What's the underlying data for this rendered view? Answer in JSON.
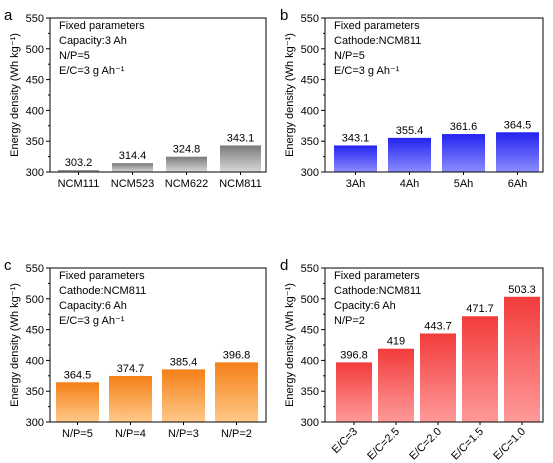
{
  "chart_data": [
    {
      "type": "bar",
      "panel_letter": "a",
      "categories": [
        "NCM111",
        "NCM523",
        "NCM622",
        "NCM811"
      ],
      "values": [
        303.2,
        314.4,
        324.8,
        343.1
      ],
      "value_labels": [
        "303.2",
        "314.4",
        "324.8",
        "343.1"
      ],
      "ylabel": "Energy density (Wh kg⁻¹)",
      "ylim": [
        300,
        550
      ],
      "yticks": [
        "300",
        "350",
        "400",
        "450",
        "500",
        "550"
      ],
      "notes": [
        "Fixed parameters",
        "Capacity:3 Ah",
        "N/P=5",
        "E/C=3 g Ah⁻¹"
      ],
      "color_top": "#7a7a7a",
      "color_bottom": "#d9d9d9",
      "x_tick_rotation": 0
    },
    {
      "type": "bar",
      "panel_letter": "b",
      "categories": [
        "3Ah",
        "4Ah",
        "5Ah",
        "6Ah"
      ],
      "values": [
        343.1,
        355.4,
        361.6,
        364.5
      ],
      "value_labels": [
        "343.1",
        "355.4",
        "361.6",
        "364.5"
      ],
      "ylabel": "Energy density (Wh kg⁻¹)",
      "ylim": [
        300,
        550
      ],
      "yticks": [
        "300",
        "350",
        "400",
        "450",
        "500",
        "550"
      ],
      "notes": [
        "Fixed parameters",
        "Cathode:NCM811",
        "N/P=5",
        "E/C=3 g Ah⁻¹"
      ],
      "color_top": "#2323f0",
      "color_bottom": "#8c8cff",
      "x_tick_rotation": 0
    },
    {
      "type": "bar",
      "panel_letter": "c",
      "categories": [
        "N/P=5",
        "N/P=4",
        "N/P=3",
        "N/P=2"
      ],
      "values": [
        364.5,
        374.7,
        385.4,
        396.8
      ],
      "value_labels": [
        "364.5",
        "374.7",
        "385.4",
        "396.8"
      ],
      "ylabel": "Energy density (Wh kg⁻¹)",
      "ylim": [
        300,
        550
      ],
      "yticks": [
        "300",
        "350",
        "400",
        "450",
        "500",
        "550"
      ],
      "notes": [
        "Fixed parameters",
        "Cathode:NCM811",
        "Capacity:6 Ah",
        "E/C=3 g Ah⁻¹"
      ],
      "color_top": "#f57f17",
      "color_bottom": "#ffc98a",
      "x_tick_rotation": 0
    },
    {
      "type": "bar",
      "panel_letter": "d",
      "categories": [
        "E/C=3",
        "E/C=2.5",
        "E/C=2.0",
        "E/C=1.5",
        "E/C=1.0"
      ],
      "values": [
        396.8,
        419,
        443.7,
        471.7,
        503.3
      ],
      "value_labels": [
        "396.8",
        "419",
        "443.7",
        "471.7",
        "503.3"
      ],
      "ylabel": "Energy density (Wh kg⁻¹)",
      "ylim": [
        300,
        550
      ],
      "yticks": [
        "300",
        "350",
        "400",
        "450",
        "500",
        "550"
      ],
      "notes": [
        "Fixed parameters",
        "Cathode:NCM811",
        "Cpacity:6 Ah",
        "N/P=2"
      ],
      "color_top": "#f23b3b",
      "color_bottom": "#ff9a9a",
      "x_tick_rotation": -45
    }
  ]
}
